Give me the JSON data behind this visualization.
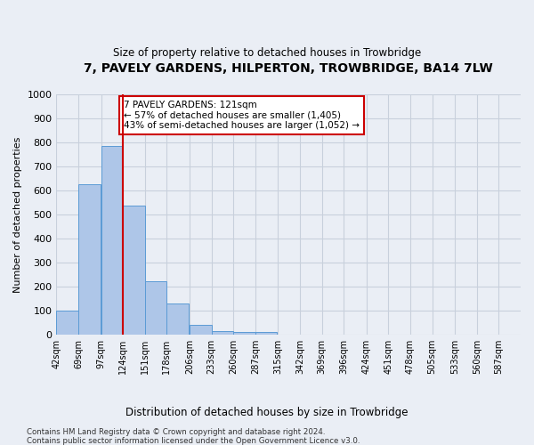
{
  "title": "7, PAVELY GARDENS, HILPERTON, TROWBRIDGE, BA14 7LW",
  "subtitle": "Size of property relative to detached houses in Trowbridge",
  "xlabel": "Distribution of detached houses by size in Trowbridge",
  "ylabel": "Number of detached properties",
  "footer_line1": "Contains HM Land Registry data © Crown copyright and database right 2024.",
  "footer_line2": "Contains public sector information licensed under the Open Government Licence v3.0.",
  "bin_edges": [
    42,
    69,
    97,
    124,
    151,
    178,
    206,
    233,
    260,
    287,
    315,
    342,
    369,
    396,
    424,
    451,
    478,
    505,
    533,
    560,
    587
  ],
  "bar_heights": [
    100,
    625,
    785,
    535,
    220,
    130,
    40,
    15,
    10,
    10,
    0,
    0,
    0,
    0,
    0,
    0,
    0,
    0,
    0,
    0
  ],
  "bar_color": "#aec6e8",
  "bar_edge_color": "#5b9bd5",
  "vline_x": 124,
  "vline_color": "#cc0000",
  "ylim": [
    0,
    1000
  ],
  "yticks": [
    0,
    100,
    200,
    300,
    400,
    500,
    600,
    700,
    800,
    900,
    1000
  ],
  "annotation_text": "7 PAVELY GARDENS: 121sqm\n← 57% of detached houses are smaller (1,405)\n43% of semi-detached houses are larger (1,052) →",
  "annotation_box_color": "#ffffff",
  "annotation_box_edge": "#cc0000",
  "grid_color": "#c8d0dc",
  "bg_color": "#eaeef5"
}
